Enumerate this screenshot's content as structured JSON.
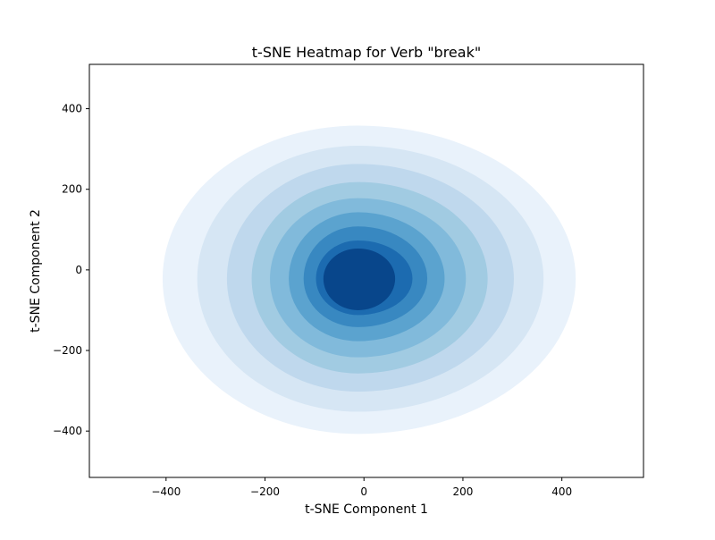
{
  "chart_data": {
    "type": "heatmap",
    "title": "t-SNE Heatmap for Verb \"break\"",
    "xlabel": "t-SNE Component 1",
    "ylabel": "t-SNE Component 2",
    "xlim": [
      -555,
      565
    ],
    "ylim": [
      -515,
      510
    ],
    "xticks": [
      -400,
      -200,
      0,
      200,
      400
    ],
    "yticks": [
      -400,
      -200,
      0,
      200,
      400
    ],
    "grid": false,
    "colormap": "Blues",
    "center": [
      -12,
      -22
    ],
    "levels": [
      {
        "rx": [
          440,
          395
        ],
        "ry": [
          380,
          385
        ],
        "color": "#e9f2fb"
      },
      {
        "rx": [
          375,
          325
        ],
        "ry": [
          330,
          330
        ],
        "color": "#d6e6f4"
      },
      {
        "rx": [
          315,
          265
        ],
        "ry": [
          285,
          280
        ],
        "color": "#bfd8ed"
      },
      {
        "rx": [
          262,
          215
        ],
        "ry": [
          240,
          235
        ],
        "color": "#a1cbe2"
      },
      {
        "rx": [
          218,
          178
        ],
        "ry": [
          200,
          195
        ],
        "color": "#81badb"
      },
      {
        "rx": [
          175,
          140
        ],
        "ry": [
          165,
          155
        ],
        "color": "#5ba3cf"
      },
      {
        "rx": [
          140,
          110
        ],
        "ry": [
          130,
          120
        ],
        "color": "#3888c1"
      },
      {
        "rx": [
          110,
          85
        ],
        "ry": [
          95,
          90
        ],
        "color": "#1c6bb0"
      },
      {
        "rx": [
          75,
          70
        ],
        "ry": [
          75,
          78
        ],
        "color": "#08468b"
      }
    ]
  }
}
